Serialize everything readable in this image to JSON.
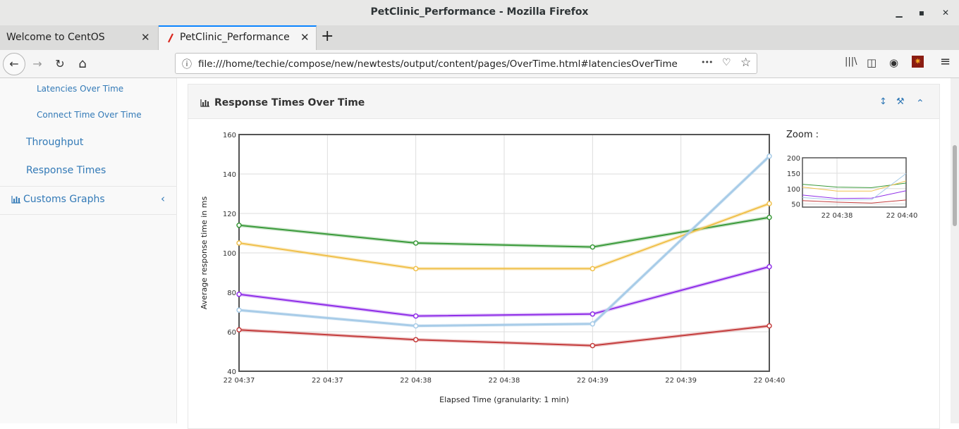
{
  "window": {
    "title": "PetClinic_Performance - Mozilla Firefox",
    "minimize": "▁",
    "maximize": "▪",
    "close": "✕"
  },
  "tabs": [
    {
      "label": "Welcome to CentOS",
      "active": false
    },
    {
      "label": "PetClinic_Performance",
      "active": true
    }
  ],
  "newtab": "+",
  "tabclose": "✕",
  "nav": {
    "back": "←",
    "forward": "→",
    "reload": "↻",
    "home": "⌂",
    "url": "file:///home/techie/compose/new/newtests/output/content/pages/OverTime.html#latenciesOverTime",
    "info_icon": "ⓘ",
    "more_icon": "•••",
    "pocket_icon": "♡",
    "star_icon": "☆",
    "library_icon": "|||\\",
    "sidebar_icon": "◫",
    "account_icon": "◉",
    "addon_icon": "✷",
    "menu_icon": "≡"
  },
  "sidebar": {
    "items": [
      {
        "label": "Latencies Over Time"
      },
      {
        "label": "Connect Time Over Time"
      },
      {
        "label": "Throughput"
      },
      {
        "label": "Response Times"
      },
      {
        "label": "Customs Graphs"
      }
    ],
    "chevron": "‹"
  },
  "panel": {
    "title": "Response Times Over Time",
    "chart_icon": "▐",
    "expand_icon": "↕",
    "settings_icon": "⚒",
    "collapse_icon": "⌃"
  },
  "chart_data": [
    {
      "type": "line",
      "xlabel": "Elapsed Time (granularity: 1 min)",
      "ylabel": "Average response time in ms",
      "ylim": [
        40,
        160
      ],
      "yticks": [
        40,
        60,
        80,
        100,
        120,
        140,
        160
      ],
      "x_tick_labels": [
        "22 04:37",
        "22 04:37",
        "22 04:38",
        "22 04:38",
        "22 04:39",
        "22 04:39",
        "22 04:40"
      ],
      "x": [
        "22 04:37",
        "22 04:38",
        "22 04:39",
        "22 04:40"
      ],
      "grid": true,
      "series": [
        {
          "color": "#3a9a3a",
          "values": [
            114,
            105,
            103,
            118
          ]
        },
        {
          "color": "#f0c04a",
          "values": [
            105,
            92,
            92,
            125
          ]
        },
        {
          "color": "#8f2ee8",
          "values": [
            79,
            68,
            69,
            93
          ]
        },
        {
          "color": "#a8cce8",
          "values": [
            71,
            63,
            64,
            149
          ]
        },
        {
          "color": "#c43c3c",
          "values": [
            61,
            56,
            53,
            63
          ]
        }
      ]
    },
    {
      "type": "line",
      "title": "Zoom :",
      "ylim": [
        40,
        200
      ],
      "yticks": [
        50,
        100,
        150,
        200
      ],
      "x_tick_labels": [
        "22 04:38",
        "22 04:40"
      ],
      "grid": true
    }
  ]
}
